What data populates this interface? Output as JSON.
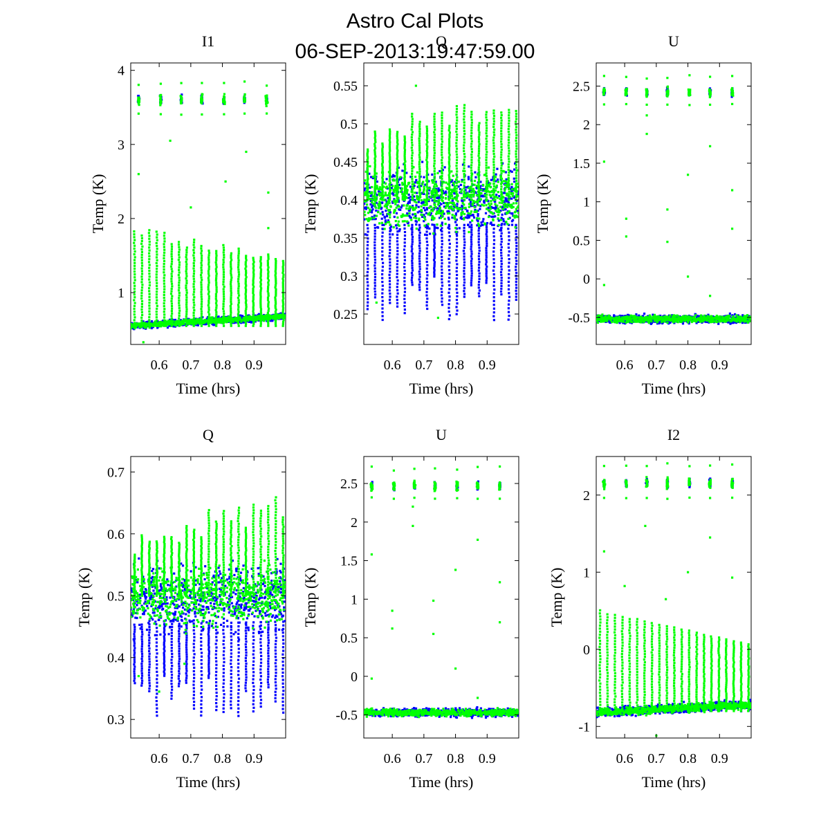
{
  "figure": {
    "title_line1": "Astro Cal Plots",
    "title_line2": "06-SEP-2013:19:47:59.00"
  },
  "series_colors": {
    "blue": "#0000ff",
    "green": "#00ff00"
  },
  "chart_data": [
    {
      "type": "scatter",
      "title": "I1",
      "xlabel": "Time (hrs)",
      "ylabel": "Temp (K)",
      "xlim": [
        0.51,
        1.0
      ],
      "ylim": [
        0.3,
        4.1
      ],
      "xticks": [
        0.6,
        0.7,
        0.8,
        0.9
      ],
      "xtick_labels": [
        "0.6",
        "0.7",
        "0.8",
        "0.9"
      ],
      "yticks": [
        1,
        2,
        3,
        4
      ],
      "ytick_labels": [
        "1",
        "2",
        "3",
        "4"
      ],
      "baseline": {
        "start": 0.55,
        "end": 0.68,
        "spread": 0.06
      },
      "green_spikes": {
        "start": 1.9,
        "end": 1.47,
        "floor": 0.55
      },
      "blue_dips": null,
      "cal_clusters": {
        "value": 3.6,
        "spread": 0.08,
        "green_max": 3.85,
        "green_min": 3.4
      },
      "outliers": [
        [
          0.535,
          2.6
        ],
        [
          0.635,
          3.05
        ],
        [
          0.7,
          2.15
        ],
        [
          0.81,
          2.5
        ],
        [
          0.875,
          2.9
        ],
        [
          0.945,
          2.35
        ],
        [
          0.945,
          1.87
        ],
        [
          0.55,
          0.33
        ]
      ]
    },
    {
      "type": "scatter",
      "title": "Q",
      "xlabel": "Time (hrs)",
      "ylabel": "Temp (K)",
      "xlim": [
        0.51,
        1.0
      ],
      "ylim": [
        0.21,
        0.58
      ],
      "xticks": [
        0.6,
        0.7,
        0.8,
        0.9
      ],
      "xtick_labels": [
        "0.6",
        "0.7",
        "0.8",
        "0.9"
      ],
      "yticks": [
        0.25,
        0.3,
        0.35,
        0.4,
        0.45,
        0.5,
        0.55
      ],
      "ytick_labels": [
        "0.25",
        "0.3",
        "0.35",
        "0.4",
        "0.45",
        "0.5",
        "0.55"
      ],
      "baseline": {
        "start": 0.4,
        "end": 0.4,
        "spread": 0.055
      },
      "green_spikes": {
        "start": 0.5,
        "end": 0.545,
        "floor": 0.4
      },
      "blue_dips": {
        "start": 0.3,
        "end": 0.3,
        "min": 0.225
      },
      "cal_clusters": null,
      "outliers": [
        [
          0.55,
          0.265
        ],
        [
          0.675,
          0.55
        ],
        [
          0.745,
          0.245
        ]
      ]
    },
    {
      "type": "scatter",
      "title": "U",
      "xlabel": "Time (hrs)",
      "ylabel": "Temp (K)",
      "xlim": [
        0.51,
        1.0
      ],
      "ylim": [
        -0.85,
        2.8
      ],
      "xticks": [
        0.6,
        0.7,
        0.8,
        0.9
      ],
      "xtick_labels": [
        "0.6",
        "0.7",
        "0.8",
        "0.9"
      ],
      "yticks": [
        -0.5,
        0,
        0.5,
        1,
        1.5,
        2,
        2.5
      ],
      "ytick_labels": [
        "-0.5",
        "0",
        "0.5",
        "1",
        "1.5",
        "2",
        "2.5"
      ],
      "baseline": {
        "start": -0.52,
        "end": -0.52,
        "spread": 0.07
      },
      "green_spikes": null,
      "blue_dips": null,
      "cal_clusters": {
        "value": 2.42,
        "spread": 0.07,
        "green_max": 2.65,
        "green_min": 2.25
      },
      "outliers": [
        [
          0.535,
          1.52
        ],
        [
          0.535,
          -0.08
        ],
        [
          0.605,
          0.78
        ],
        [
          0.605,
          0.55
        ],
        [
          0.67,
          1.88
        ],
        [
          0.67,
          2.12
        ],
        [
          0.735,
          0.9
        ],
        [
          0.735,
          0.48
        ],
        [
          0.8,
          1.35
        ],
        [
          0.8,
          0.03
        ],
        [
          0.87,
          1.72
        ],
        [
          0.87,
          -0.22
        ],
        [
          0.94,
          1.15
        ],
        [
          0.94,
          0.65
        ]
      ]
    },
    {
      "type": "scatter",
      "title": "Q",
      "xlabel": "Time (hrs)",
      "ylabel": "Temp (K)",
      "xlim": [
        0.51,
        1.0
      ],
      "ylim": [
        0.27,
        0.725
      ],
      "xticks": [
        0.6,
        0.7,
        0.8,
        0.9
      ],
      "xtick_labels": [
        "0.6",
        "0.7",
        "0.8",
        "0.9"
      ],
      "yticks": [
        0.3,
        0.4,
        0.5,
        0.6,
        0.7
      ],
      "ytick_labels": [
        "0.3",
        "0.4",
        "0.5",
        "0.6",
        "0.7"
      ],
      "baseline": {
        "start": 0.495,
        "end": 0.5,
        "spread": 0.07
      },
      "green_spikes": {
        "start": 0.6,
        "end": 0.68,
        "floor": 0.5
      },
      "blue_dips": {
        "start": 0.38,
        "end": 0.36,
        "min": 0.285
      },
      "cal_clusters": null,
      "outliers": [
        [
          0.535,
          0.37
        ],
        [
          0.6,
          0.345
        ],
        [
          0.68,
          0.39
        ]
      ]
    },
    {
      "type": "scatter",
      "title": "U",
      "xlabel": "Time (hrs)",
      "ylabel": "Temp (K)",
      "xlim": [
        0.51,
        1.0
      ],
      "ylim": [
        -0.8,
        2.85
      ],
      "xticks": [
        0.6,
        0.7,
        0.8,
        0.9
      ],
      "xtick_labels": [
        "0.6",
        "0.7",
        "0.8",
        "0.9"
      ],
      "yticks": [
        -0.5,
        0,
        0.5,
        1,
        1.5,
        2,
        2.5
      ],
      "ytick_labels": [
        "-0.5",
        "0",
        "0.5",
        "1",
        "1.5",
        "2",
        "2.5"
      ],
      "baseline": {
        "start": -0.47,
        "end": -0.47,
        "spread": 0.07
      },
      "green_spikes": null,
      "blue_dips": null,
      "cal_clusters": {
        "value": 2.47,
        "spread": 0.07,
        "green_max": 2.72,
        "green_min": 2.3
      },
      "outliers": [
        [
          0.535,
          1.58
        ],
        [
          0.535,
          -0.03
        ],
        [
          0.6,
          0.85
        ],
        [
          0.6,
          0.62
        ],
        [
          0.665,
          2.2
        ],
        [
          0.665,
          1.95
        ],
        [
          0.73,
          0.98
        ],
        [
          0.73,
          0.55
        ],
        [
          0.8,
          1.38
        ],
        [
          0.8,
          0.1
        ],
        [
          0.87,
          1.77
        ],
        [
          0.87,
          -0.28
        ],
        [
          0.94,
          1.22
        ],
        [
          0.94,
          0.7
        ]
      ]
    },
    {
      "type": "scatter",
      "title": "I2",
      "xlabel": "Time (hrs)",
      "ylabel": "Temp (K)",
      "xlim": [
        0.51,
        1.0
      ],
      "ylim": [
        -1.15,
        2.5
      ],
      "xticks": [
        0.6,
        0.7,
        0.8,
        0.9
      ],
      "xtick_labels": [
        "0.6",
        "0.7",
        "0.8",
        "0.9"
      ],
      "yticks": [
        -1,
        0,
        1,
        2
      ],
      "ytick_labels": [
        "-1",
        "0",
        "1",
        "2"
      ],
      "baseline": {
        "start": -0.82,
        "end": -0.72,
        "spread": 0.08
      },
      "green_spikes": {
        "start": 0.52,
        "end": 0.06,
        "floor": -0.8
      },
      "blue_dips": null,
      "cal_clusters": {
        "value": 2.15,
        "spread": 0.08,
        "green_max": 2.42,
        "green_min": 1.95
      },
      "outliers": [
        [
          0.535,
          1.27
        ],
        [
          0.6,
          0.82
        ],
        [
          0.665,
          1.6
        ],
        [
          0.73,
          0.65
        ],
        [
          0.8,
          1.0
        ],
        [
          0.87,
          1.45
        ],
        [
          0.94,
          0.93
        ],
        [
          0.7,
          -1.12
        ]
      ]
    }
  ]
}
